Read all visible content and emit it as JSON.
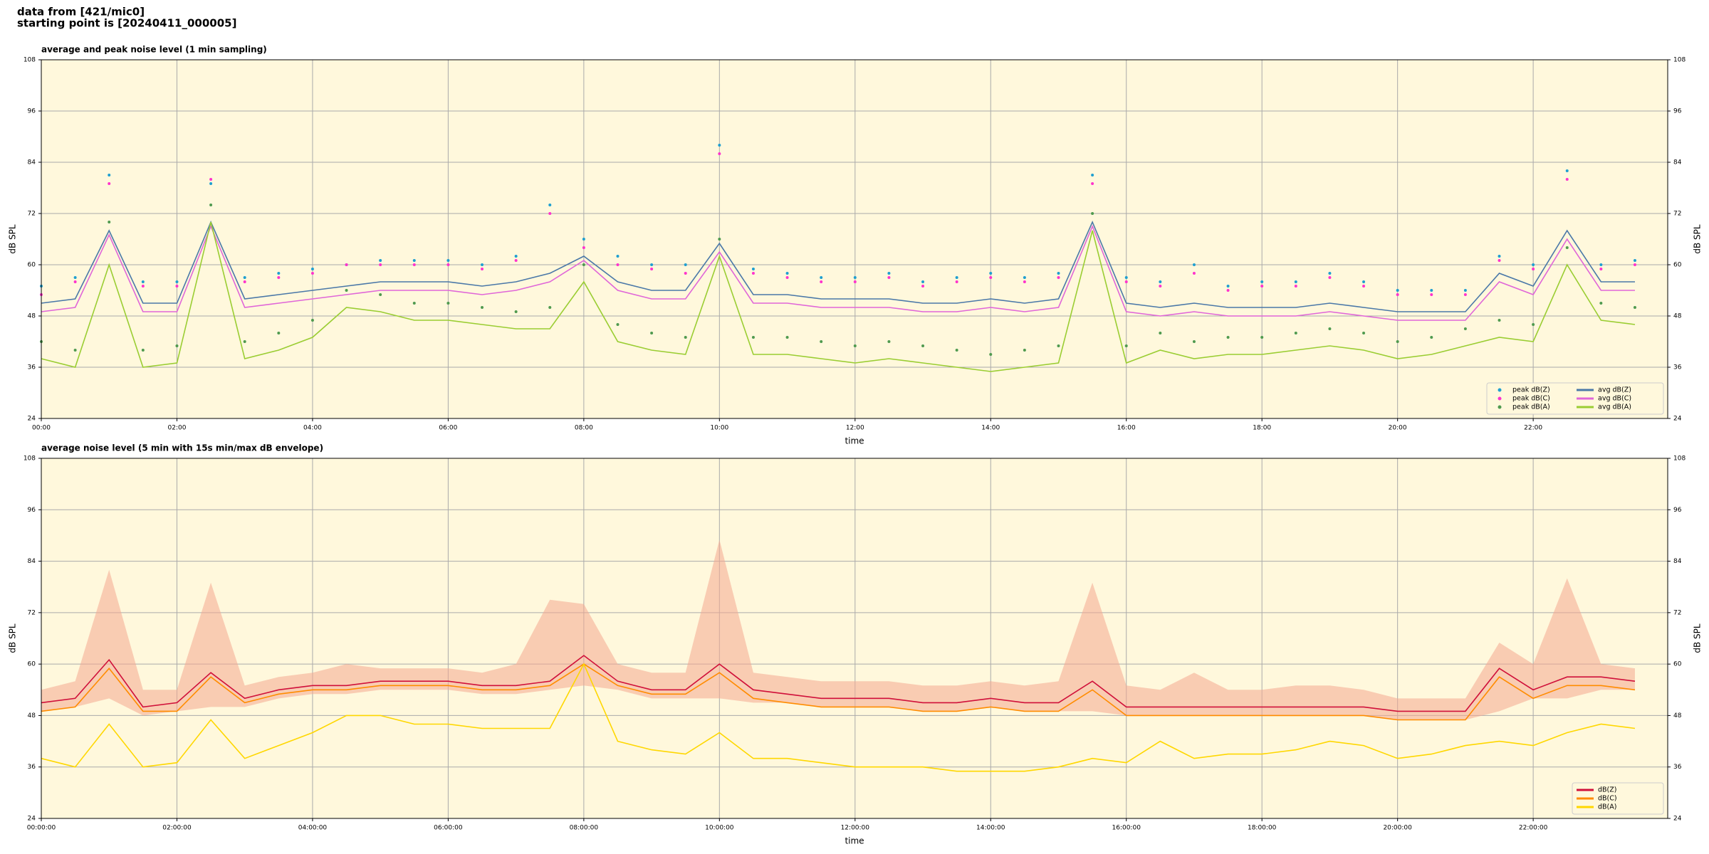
{
  "suptitle": [
    "data from [421/mic0]",
    "starting point is [20240411_000005]"
  ],
  "chart_data": [
    {
      "type": "line",
      "title": "average and peak noise level (1 min sampling)",
      "xlabel": "time",
      "ylabel": "dB SPL",
      "xlim": [
        0,
        1439
      ],
      "ylim": [
        24,
        108
      ],
      "yticks": [
        24,
        36,
        48,
        60,
        72,
        84,
        96,
        108
      ],
      "xticks": [
        {
          "value": 0,
          "label": "00:00"
        },
        {
          "value": 120,
          "label": "02:00"
        },
        {
          "value": 240,
          "label": "04:00"
        },
        {
          "value": 360,
          "label": "06:00"
        },
        {
          "value": 480,
          "label": "08:00"
        },
        {
          "value": 600,
          "label": "10:00"
        },
        {
          "value": 720,
          "label": "12:00"
        },
        {
          "value": 840,
          "label": "14:00"
        },
        {
          "value": 960,
          "label": "16:00"
        },
        {
          "value": 1080,
          "label": "18:00"
        },
        {
          "value": 1200,
          "label": "20:00"
        },
        {
          "value": 1320,
          "label": "22:00"
        }
      ],
      "grid": true,
      "legend": "lower right",
      "legend_columns": 2,
      "background": "#fff8dc",
      "x": [
        0,
        30,
        60,
        90,
        120,
        150,
        180,
        210,
        240,
        270,
        300,
        330,
        360,
        390,
        420,
        450,
        480,
        510,
        540,
        570,
        600,
        630,
        660,
        690,
        720,
        750,
        780,
        810,
        840,
        870,
        900,
        930,
        960,
        990,
        1020,
        1050,
        1080,
        1110,
        1140,
        1170,
        1200,
        1230,
        1260,
        1290,
        1320,
        1350,
        1380,
        1410
      ],
      "series": [
        {
          "name": "peak dB(Z)",
          "style": "scatter",
          "color": "#1f9fd0",
          "values": [
            55,
            57,
            81,
            56,
            56,
            79,
            57,
            58,
            59,
            60,
            61,
            61,
            61,
            60,
            62,
            74,
            66,
            62,
            60,
            60,
            88,
            59,
            58,
            57,
            57,
            58,
            56,
            57,
            58,
            57,
            58,
            81,
            57,
            56,
            60,
            55,
            56,
            56,
            58,
            56,
            54,
            54,
            54,
            62,
            60,
            82,
            60,
            61
          ]
        },
        {
          "name": "peak dB(C)",
          "style": "scatter",
          "color": "#ff33cc",
          "values": [
            53,
            56,
            79,
            55,
            55,
            80,
            56,
            57,
            58,
            60,
            60,
            60,
            60,
            59,
            61,
            72,
            64,
            60,
            59,
            58,
            86,
            58,
            57,
            56,
            56,
            57,
            55,
            56,
            57,
            56,
            57,
            79,
            56,
            55,
            58,
            54,
            55,
            55,
            57,
            55,
            53,
            53,
            53,
            61,
            59,
            80,
            59,
            60
          ]
        },
        {
          "name": "peak dB(A)",
          "style": "scatter",
          "color": "#4f9a4f",
          "values": [
            42,
            40,
            70,
            40,
            41,
            74,
            42,
            44,
            47,
            54,
            53,
            51,
            51,
            50,
            49,
            50,
            60,
            46,
            44,
            43,
            66,
            43,
            43,
            42,
            41,
            42,
            41,
            40,
            39,
            40,
            41,
            72,
            41,
            44,
            42,
            43,
            43,
            44,
            45,
            44,
            42,
            43,
            45,
            47,
            46,
            64,
            51,
            50
          ]
        },
        {
          "name": "avg dB(Z)",
          "style": "line",
          "color": "#4a78a8",
          "values": [
            51,
            52,
            68,
            51,
            51,
            70,
            52,
            53,
            54,
            55,
            56,
            56,
            56,
            55,
            56,
            58,
            62,
            56,
            54,
            54,
            65,
            53,
            53,
            52,
            52,
            52,
            51,
            51,
            52,
            51,
            52,
            70,
            51,
            50,
            51,
            50,
            50,
            50,
            51,
            50,
            49,
            49,
            49,
            58,
            55,
            68,
            56,
            56
          ]
        },
        {
          "name": "avg dB(C)",
          "style": "line",
          "color": "#e066d8",
          "values": [
            49,
            50,
            67,
            49,
            49,
            69,
            50,
            51,
            52,
            53,
            54,
            54,
            54,
            53,
            54,
            56,
            61,
            54,
            52,
            52,
            63,
            51,
            51,
            50,
            50,
            50,
            49,
            49,
            50,
            49,
            50,
            69,
            49,
            48,
            49,
            48,
            48,
            48,
            49,
            48,
            47,
            47,
            47,
            56,
            53,
            66,
            54,
            54
          ]
        },
        {
          "name": "avg dB(A)",
          "style": "line",
          "color": "#9acd32",
          "values": [
            38,
            36,
            60,
            36,
            37,
            70,
            38,
            40,
            43,
            50,
            49,
            47,
            47,
            46,
            45,
            45,
            56,
            42,
            40,
            39,
            62,
            39,
            39,
            38,
            37,
            38,
            37,
            36,
            35,
            36,
            37,
            68,
            37,
            40,
            38,
            39,
            39,
            40,
            41,
            40,
            38,
            39,
            41,
            43,
            42,
            60,
            47,
            46
          ]
        }
      ]
    },
    {
      "type": "line",
      "title": "average noise level (5 min with 15s min/max dB envelope)",
      "xlabel": "time",
      "ylabel": "dB SPL",
      "xlim": [
        0,
        1439
      ],
      "ylim": [
        24,
        108
      ],
      "yticks": [
        24,
        36,
        48,
        60,
        72,
        84,
        96,
        108
      ],
      "xticks": [
        {
          "value": 0,
          "label": "00:00:00"
        },
        {
          "value": 120,
          "label": "02:00:00"
        },
        {
          "value": 240,
          "label": "04:00:00"
        },
        {
          "value": 360,
          "label": "06:00:00"
        },
        {
          "value": 480,
          "label": "08:00:00"
        },
        {
          "value": 600,
          "label": "10:00:00"
        },
        {
          "value": 720,
          "label": "12:00:00"
        },
        {
          "value": 840,
          "label": "14:00:00"
        },
        {
          "value": 960,
          "label": "16:00:00"
        },
        {
          "value": 1080,
          "label": "18:00:00"
        },
        {
          "value": 1200,
          "label": "20:00:00"
        },
        {
          "value": 1320,
          "label": "22:00:00"
        }
      ],
      "grid": true,
      "legend": "lower right",
      "legend_columns": 1,
      "background": "#fff8dc",
      "x": [
        0,
        30,
        60,
        90,
        120,
        150,
        180,
        210,
        240,
        270,
        300,
        330,
        360,
        390,
        420,
        450,
        480,
        510,
        540,
        570,
        600,
        630,
        660,
        690,
        720,
        750,
        780,
        810,
        840,
        870,
        900,
        930,
        960,
        990,
        1020,
        1050,
        1080,
        1110,
        1140,
        1170,
        1200,
        1230,
        1260,
        1290,
        1320,
        1350,
        1380,
        1410
      ],
      "band": {
        "color": "#f4a890",
        "upper": [
          54,
          56,
          82,
          54,
          54,
          79,
          55,
          57,
          58,
          60,
          59,
          59,
          59,
          58,
          60,
          75,
          74,
          60,
          58,
          58,
          89,
          58,
          57,
          56,
          56,
          56,
          55,
          55,
          56,
          55,
          56,
          79,
          55,
          54,
          58,
          54,
          54,
          55,
          55,
          54,
          52,
          52,
          52,
          65,
          60,
          80,
          60,
          59
        ],
        "lower": [
          49,
          50,
          52,
          48,
          49,
          50,
          50,
          52,
          53,
          53,
          54,
          54,
          54,
          53,
          53,
          54,
          55,
          54,
          52,
          52,
          52,
          51,
          51,
          50,
          50,
          50,
          49,
          49,
          50,
          49,
          49,
          49,
          48,
          48,
          48,
          48,
          48,
          48,
          48,
          48,
          47,
          47,
          47,
          49,
          52,
          52,
          54,
          54
        ]
      },
      "series": [
        {
          "name": "dB(Z)",
          "style": "line",
          "color": "#d0103a",
          "values": [
            51,
            52,
            61,
            50,
            51,
            58,
            52,
            54,
            55,
            55,
            56,
            56,
            56,
            55,
            55,
            56,
            62,
            56,
            54,
            54,
            60,
            54,
            53,
            52,
            52,
            52,
            51,
            51,
            52,
            51,
            51,
            56,
            50,
            50,
            50,
            50,
            50,
            50,
            50,
            50,
            49,
            49,
            49,
            59,
            54,
            57,
            57,
            56
          ]
        },
        {
          "name": "dB(C)",
          "style": "line",
          "color": "#ff8c00",
          "values": [
            49,
            50,
            59,
            49,
            49,
            57,
            51,
            53,
            54,
            54,
            55,
            55,
            55,
            54,
            54,
            55,
            60,
            55,
            53,
            53,
            58,
            52,
            51,
            50,
            50,
            50,
            49,
            49,
            50,
            49,
            49,
            54,
            48,
            48,
            48,
            48,
            48,
            48,
            48,
            48,
            47,
            47,
            47,
            57,
            52,
            55,
            55,
            54
          ]
        },
        {
          "name": "dB(A)",
          "style": "line",
          "color": "#ffd700",
          "values": [
            38,
            36,
            46,
            36,
            37,
            47,
            38,
            41,
            44,
            48,
            48,
            46,
            46,
            45,
            45,
            45,
            60,
            42,
            40,
            39,
            44,
            38,
            38,
            37,
            36,
            36,
            36,
            35,
            35,
            35,
            36,
            38,
            37,
            42,
            38,
            39,
            39,
            40,
            42,
            41,
            38,
            39,
            41,
            42,
            41,
            44,
            46,
            45
          ]
        }
      ]
    }
  ]
}
